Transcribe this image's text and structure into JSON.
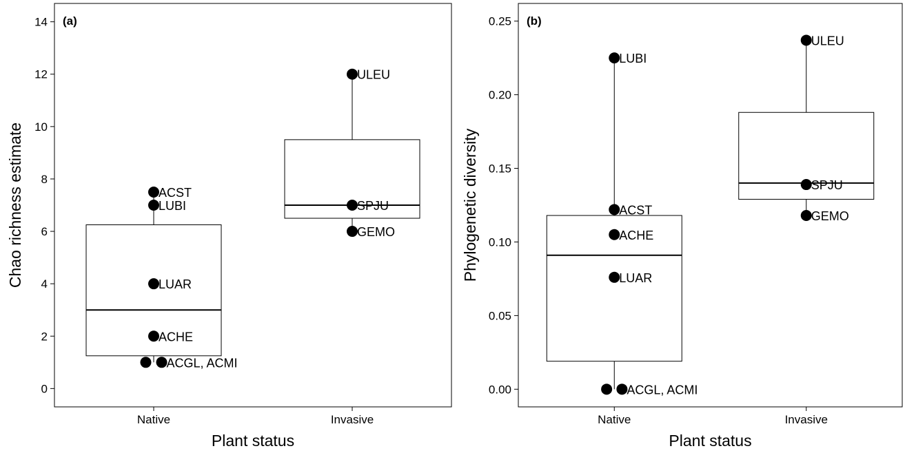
{
  "chart_data": [
    {
      "type": "box",
      "panel_label": "(a)",
      "xlabel": "Plant status",
      "ylabel": "Chao richness estimate",
      "categories": [
        "Native",
        "Invasive"
      ],
      "ylim": [
        -0.7,
        14.7
      ],
      "yticks": [
        0,
        2,
        4,
        6,
        8,
        10,
        12,
        14
      ],
      "grid": false,
      "boxes": [
        {
          "category": "Native",
          "q1": 1.25,
          "median": 3,
          "q3": 6.25,
          "whisker_low": 1,
          "whisker_high": 7.5
        },
        {
          "category": "Invasive",
          "q1": 6.5,
          "median": 7,
          "q3": 9.5,
          "whisker_low": 6,
          "whisker_high": 12
        }
      ],
      "points": [
        {
          "category": "Native",
          "y": 7.5,
          "label": "ACST",
          "offset": 0
        },
        {
          "category": "Native",
          "y": 7,
          "label": "LUBI",
          "offset": 0
        },
        {
          "category": "Native",
          "y": 4,
          "label": "LUAR",
          "offset": 0
        },
        {
          "category": "Native",
          "y": 2,
          "label": "ACHE",
          "offset": 0
        },
        {
          "category": "Native",
          "y": 1,
          "label": "",
          "offset": -0.04
        },
        {
          "category": "Native",
          "y": 1,
          "label": "ACGL, ACMI",
          "offset": 0.04
        },
        {
          "category": "Invasive",
          "y": 12,
          "label": "ULEU",
          "offset": 0
        },
        {
          "category": "Invasive",
          "y": 7,
          "label": "SPJU",
          "offset": 0
        },
        {
          "category": "Invasive",
          "y": 6,
          "label": "GEMO",
          "offset": 0
        }
      ]
    },
    {
      "type": "box",
      "panel_label": "(b)",
      "xlabel": "Plant status",
      "ylabel": "Phylogenetic diversity",
      "categories": [
        "Native",
        "Invasive"
      ],
      "ylim": [
        -0.012,
        0.262
      ],
      "yticks": [
        0.0,
        0.05,
        0.1,
        0.15,
        0.2,
        0.25
      ],
      "ytick_labels": [
        "0.00",
        "0.05",
        "0.10",
        "0.15",
        "0.20",
        "0.25"
      ],
      "grid": false,
      "boxes": [
        {
          "category": "Native",
          "q1": 0.019,
          "median": 0.091,
          "q3": 0.118,
          "whisker_low": 0,
          "whisker_high": 0.225
        },
        {
          "category": "Invasive",
          "q1": 0.129,
          "median": 0.14,
          "q3": 0.188,
          "whisker_low": 0.118,
          "whisker_high": 0.237
        }
      ],
      "points": [
        {
          "category": "Native",
          "y": 0.225,
          "label": "LUBI",
          "offset": 0
        },
        {
          "category": "Native",
          "y": 0.122,
          "label": "ACST",
          "offset": 0
        },
        {
          "category": "Native",
          "y": 0.105,
          "label": "ACHE",
          "offset": 0
        },
        {
          "category": "Native",
          "y": 0.076,
          "label": "LUAR",
          "offset": 0
        },
        {
          "category": "Native",
          "y": 0,
          "label": "",
          "offset": -0.04
        },
        {
          "category": "Native",
          "y": 0,
          "label": "ACGL, ACMI",
          "offset": 0.04
        },
        {
          "category": "Invasive",
          "y": 0.237,
          "label": "ULEU",
          "offset": 0
        },
        {
          "category": "Invasive",
          "y": 0.139,
          "label": "SPJU",
          "offset": 0
        },
        {
          "category": "Invasive",
          "y": 0.118,
          "label": "GEMO",
          "offset": 0
        }
      ]
    }
  ]
}
